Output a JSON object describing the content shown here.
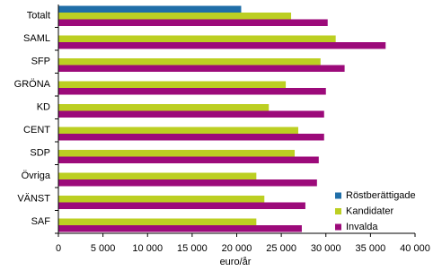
{
  "chart_data": {
    "type": "hbar",
    "xlabel": "euro/år",
    "categories": [
      "Totalt",
      "SAML",
      "SFP",
      "GRÖNA",
      "KD",
      "CENT",
      "SDP",
      "Övriga",
      "VÄNST",
      "SAF"
    ],
    "series": [
      {
        "name": "Röstberättigade",
        "color": "#1f6ea8",
        "values": [
          20500,
          null,
          null,
          null,
          null,
          null,
          null,
          null,
          null,
          null
        ]
      },
      {
        "name": "Kandidater",
        "color": "#bccf22",
        "values": [
          26100,
          31100,
          29400,
          25500,
          23600,
          26900,
          26500,
          22200,
          23100,
          22200
        ]
      },
      {
        "name": "Invalda",
        "color": "#9c0a7a",
        "values": [
          30200,
          36700,
          32100,
          30000,
          29800,
          29800,
          29200,
          29000,
          27700,
          27300
        ]
      }
    ],
    "xlim": [
      0,
      40000
    ],
    "xticks": [
      0,
      {
        "value": 5000,
        "label": "5 000"
      },
      {
        "value": 10000,
        "label": "10 000"
      },
      {
        "value": 15000,
        "label": "15 000"
      },
      {
        "value": 20000,
        "label": "20 000"
      },
      {
        "value": 25000,
        "label": "25 000"
      },
      {
        "value": 30000,
        "label": "30 000"
      },
      {
        "value": 35000,
        "label": "35 000"
      },
      {
        "value": 40000,
        "label": "40 000"
      }
    ],
    "legend": "lower-right"
  }
}
